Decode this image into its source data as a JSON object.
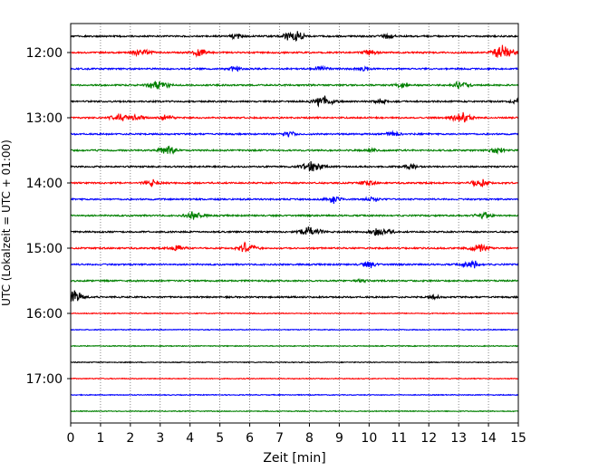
{
  "chart_data": {
    "type": "line",
    "title": "",
    "xlabel": "Zeit  [min]",
    "ylabel": "UTC (Lokalzeit = UTC + 01:00)",
    "xlim": [
      0,
      15
    ],
    "x_ticks": [
      "0",
      "1",
      "2",
      "3",
      "4",
      "5",
      "6",
      "7",
      "8",
      "9",
      "10",
      "11",
      "12",
      "13",
      "14",
      "15"
    ],
    "y_tick_labels": [
      "12:00",
      "13:00",
      "14:00",
      "15:00",
      "16:00",
      "17:00"
    ],
    "grid": "vertical dotted",
    "start_time": "11:45",
    "rows_per_hour": 4,
    "color_cycle": [
      "#000000",
      "#ff0000",
      "#0000ff",
      "#008000"
    ],
    "traces": [
      {
        "start": "11:45",
        "events": [
          [
            5.6,
            0.2
          ],
          [
            7.5,
            0.5
          ],
          [
            10.6,
            0.2
          ]
        ]
      },
      {
        "start": "12:00",
        "events": [
          [
            2.4,
            0.35
          ],
          [
            4.3,
            0.3
          ],
          [
            10.0,
            0.25
          ],
          [
            14.5,
            0.55
          ]
        ]
      },
      {
        "start": "12:15",
        "events": [
          [
            5.5,
            0.15
          ],
          [
            8.4,
            0.25
          ],
          [
            9.8,
            0.2
          ]
        ]
      },
      {
        "start": "12:30",
        "events": [
          [
            2.95,
            0.45
          ],
          [
            11.1,
            0.2
          ],
          [
            13.1,
            0.3
          ]
        ]
      },
      {
        "start": "12:45",
        "events": [
          [
            8.45,
            0.5
          ],
          [
            10.4,
            0.2
          ],
          [
            15.0,
            0.2
          ]
        ]
      },
      {
        "start": "13:00",
        "events": [
          [
            1.6,
            0.3
          ],
          [
            2.2,
            0.25
          ],
          [
            3.2,
            0.2
          ],
          [
            13.1,
            0.45
          ]
        ]
      },
      {
        "start": "13:15",
        "events": [
          [
            7.3,
            0.2
          ],
          [
            10.8,
            0.2
          ]
        ]
      },
      {
        "start": "13:30",
        "events": [
          [
            3.25,
            0.35
          ],
          [
            10.1,
            0.15
          ],
          [
            14.3,
            0.25
          ]
        ]
      },
      {
        "start": "13:45",
        "events": [
          [
            8.1,
            0.5
          ],
          [
            11.4,
            0.2
          ]
        ]
      },
      {
        "start": "14:00",
        "events": [
          [
            2.7,
            0.25
          ],
          [
            9.95,
            0.2
          ],
          [
            13.7,
            0.35
          ]
        ]
      },
      {
        "start": "14:15",
        "events": [
          [
            8.8,
            0.3
          ],
          [
            10.1,
            0.2
          ]
        ]
      },
      {
        "start": "14:30",
        "events": [
          [
            4.15,
            0.35
          ],
          [
            13.85,
            0.3
          ]
        ]
      },
      {
        "start": "14:45",
        "events": [
          [
            8.05,
            0.5
          ],
          [
            10.25,
            0.25
          ],
          [
            10.6,
            0.2
          ]
        ]
      },
      {
        "start": "15:00",
        "events": [
          [
            3.6,
            0.25
          ],
          [
            5.9,
            0.4
          ],
          [
            13.7,
            0.4
          ]
        ]
      },
      {
        "start": "15:15",
        "events": [
          [
            10.0,
            0.25
          ],
          [
            13.4,
            0.35
          ]
        ]
      },
      {
        "start": "15:30",
        "events": [
          [
            9.7,
            0.1
          ]
        ]
      },
      {
        "start": "15:45",
        "events": [
          [
            0.05,
            0.6
          ],
          [
            12.15,
            0.15
          ]
        ]
      },
      {
        "start": "16:00",
        "events": []
      },
      {
        "start": "16:15",
        "events": []
      },
      {
        "start": "16:30",
        "events": []
      },
      {
        "start": "16:45",
        "events": []
      },
      {
        "start": "17:00",
        "events": []
      },
      {
        "start": "17:15",
        "events": []
      },
      {
        "start": "17:30",
        "events": []
      }
    ]
  }
}
